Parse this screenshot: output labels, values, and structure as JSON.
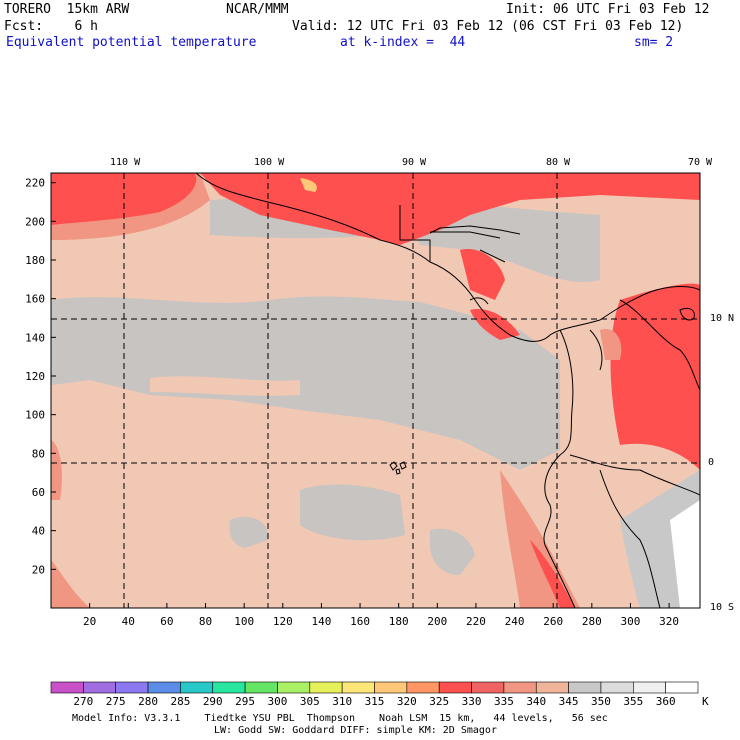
{
  "header": {
    "model": "TORERO  15km ARW",
    "center": "NCAR/MMM",
    "init": "Init: 06 UTC Fri 03 Feb 12",
    "fcst": "Fcst:    6 h",
    "valid": "Valid: 12 UTC Fri 03 Feb 12 (06 CST Fri 03 Feb 12)",
    "field": "Equivalent potential temperature",
    "level": "at k-index =  44",
    "smooth": "sm= 2"
  },
  "map": {
    "lon_labels": [
      "110 W",
      "100 W",
      "90 W",
      "80 W",
      "70 W"
    ],
    "lat_labels": [
      "10 N",
      "0",
      "10 S"
    ],
    "x_ticks": [
      "20",
      "40",
      "60",
      "80",
      "100",
      "120",
      "140",
      "160",
      "180",
      "200",
      "220",
      "240",
      "260",
      "280",
      "300",
      "320"
    ],
    "y_ticks": [
      "20",
      "40",
      "60",
      "80",
      "100",
      "120",
      "140",
      "160",
      "180",
      "200",
      "220"
    ],
    "grid_x": [
      -0.5,
      39.5,
      79.5,
      119.5,
      159.5,
      199.5,
      239.5,
      279.5,
      319.5
    ]
  },
  "legend": {
    "levels": [
      "270",
      "275",
      "280",
      "285",
      "290",
      "295",
      "300",
      "305",
      "310",
      "315",
      "320",
      "325",
      "330",
      "335",
      "340",
      "345",
      "350",
      "355",
      "360"
    ],
    "unit": "K",
    "colors": [
      "#c850c8",
      "#a06ee0",
      "#8c78f0",
      "#5a8ce8",
      "#28c8c8",
      "#28e6a0",
      "#64e664",
      "#aaf064",
      "#e6f05a",
      "#ffe678",
      "#ffc878",
      "#ff9664",
      "#ff5050",
      "#f06464",
      "#f09682",
      "#f0b49a",
      "#c8c8c8",
      "#dcdcdc",
      "#f0f0f0",
      "#ffffff"
    ]
  },
  "footer": {
    "line1": "Model Info: V3.3.1    Tiedtke YSU PBL  Thompson    Noah LSM  15 km,   44 levels,   56 sec",
    "line2": "LW: Godd SW: Goddard DIFF: simple KM: 2D Smagor"
  }
}
